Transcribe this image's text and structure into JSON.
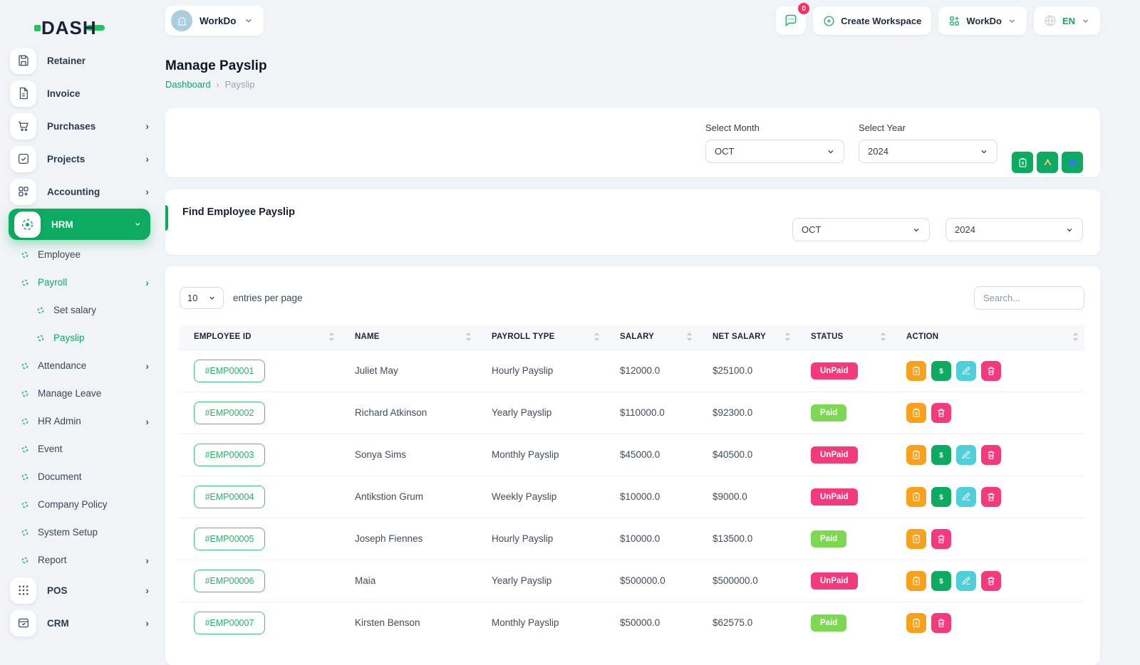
{
  "brand": {
    "name": "DASH"
  },
  "topbar": {
    "workspace_name": "WorkDo",
    "messages_badge": "0",
    "create_workspace_label": "Create Workspace",
    "app_switcher_label": "WorkDo",
    "language_code": "EN"
  },
  "page": {
    "title": "Manage Payslip",
    "breadcrumb_home": "Dashboard",
    "breadcrumb_separator": "›",
    "breadcrumb_current": "Payslip"
  },
  "sidebar": {
    "items": [
      {
        "label": "Retainer",
        "level": "top",
        "icon": "save-icon"
      },
      {
        "label": "Invoice",
        "level": "top",
        "icon": "invoice-icon"
      },
      {
        "label": "Purchases",
        "level": "top",
        "icon": "cart-icon",
        "chevron": "right"
      },
      {
        "label": "Projects",
        "level": "top",
        "icon": "projects-icon",
        "chevron": "right"
      },
      {
        "label": "Accounting",
        "level": "top",
        "icon": "accounting-icon",
        "chevron": "right"
      },
      {
        "label": "HRM",
        "level": "top",
        "icon": "hrm-icon",
        "chevron": "down",
        "active": true
      },
      {
        "label": "Employee",
        "level": "sub"
      },
      {
        "label": "Payroll",
        "level": "sub",
        "chevron": "right",
        "active": true
      },
      {
        "label": "Set salary",
        "level": "subsub"
      },
      {
        "label": "Payslip",
        "level": "subsub",
        "active": true
      },
      {
        "label": "Attendance",
        "level": "sub",
        "chevron": "right"
      },
      {
        "label": "Manage Leave",
        "level": "sub"
      },
      {
        "label": "HR Admin",
        "level": "sub",
        "chevron": "right"
      },
      {
        "label": "Event",
        "level": "sub"
      },
      {
        "label": "Document",
        "level": "sub"
      },
      {
        "label": "Company Policy",
        "level": "sub"
      },
      {
        "label": "System Setup",
        "level": "sub"
      },
      {
        "label": "Report",
        "level": "sub",
        "chevron": "right"
      },
      {
        "label": "POS",
        "level": "top",
        "icon": "pos-icon",
        "chevron": "right"
      },
      {
        "label": "CRM",
        "level": "top",
        "icon": "crm-icon",
        "chevron": "right"
      }
    ]
  },
  "filter_card": {
    "month_label": "Select Month",
    "month_value": "OCT",
    "year_label": "Select Year",
    "year_value": "2024",
    "export_buttons": [
      "payslip-export-icon",
      "google-drive-icon",
      "onedrive-icon"
    ]
  },
  "find_card": {
    "title": "Find Employee Payslip",
    "month_value": "OCT",
    "year_value": "2024"
  },
  "table_card": {
    "page_size": "10",
    "entries_label": "entries per page",
    "search_placeholder": "Search...",
    "columns": [
      "EMPLOYEE ID",
      "NAME",
      "PAYROLL TYPE",
      "SALARY",
      "NET SALARY",
      "STATUS",
      "ACTION"
    ],
    "rows": [
      {
        "id": "#EMP00001",
        "name": "Juliet May",
        "payroll_type": "Hourly Payslip",
        "salary": "$12000.0",
        "net_salary": "$25100.0",
        "status": "UnPaid",
        "actions": [
          "payslip",
          "payment",
          "edit",
          "delete"
        ]
      },
      {
        "id": "#EMP00002",
        "name": "Richard Atkinson",
        "payroll_type": "Yearly Payslip",
        "salary": "$110000.0",
        "net_salary": "$92300.0",
        "status": "Paid",
        "actions": [
          "payslip",
          "delete"
        ]
      },
      {
        "id": "#EMP00003",
        "name": "Sonya Sims",
        "payroll_type": "Monthly Payslip",
        "salary": "$45000.0",
        "net_salary": "$40500.0",
        "status": "UnPaid",
        "actions": [
          "payslip",
          "payment",
          "edit",
          "delete"
        ]
      },
      {
        "id": "#EMP00004",
        "name": "Antikstion Grum",
        "payroll_type": "Weekly Payslip",
        "salary": "$10000.0",
        "net_salary": "$9000.0",
        "status": "UnPaid",
        "actions": [
          "payslip",
          "payment",
          "edit",
          "delete"
        ]
      },
      {
        "id": "#EMP00005",
        "name": "Joseph Fiennes",
        "payroll_type": "Hourly Payslip",
        "salary": "$10000.0",
        "net_salary": "$13500.0",
        "status": "Paid",
        "actions": [
          "payslip",
          "delete"
        ]
      },
      {
        "id": "#EMP00006",
        "name": "Maia",
        "payroll_type": "Yearly Payslip",
        "salary": "$500000.0",
        "net_salary": "$500000.0",
        "status": "UnPaid",
        "actions": [
          "payslip",
          "payment",
          "edit",
          "delete"
        ]
      },
      {
        "id": "#EMP00007",
        "name": "Kirsten Benson",
        "payroll_type": "Monthly Payslip",
        "salary": "$50000.0",
        "net_salary": "$62575.0",
        "status": "Paid",
        "actions": [
          "payslip",
          "delete"
        ]
      }
    ],
    "status_colors": {
      "Paid": "#7ED952",
      "UnPaid": "#F4397D"
    },
    "action_colors": {
      "payslip": "#F9A11B",
      "payment": "#0CAB61",
      "edit": "#4ED0DB",
      "delete": "#F4397D"
    }
  },
  "colors": {
    "primary": "#0CAB61",
    "page_bg": "#F1F4F6",
    "logo_green": "#21C55D",
    "logo_navy": "#17223B"
  }
}
